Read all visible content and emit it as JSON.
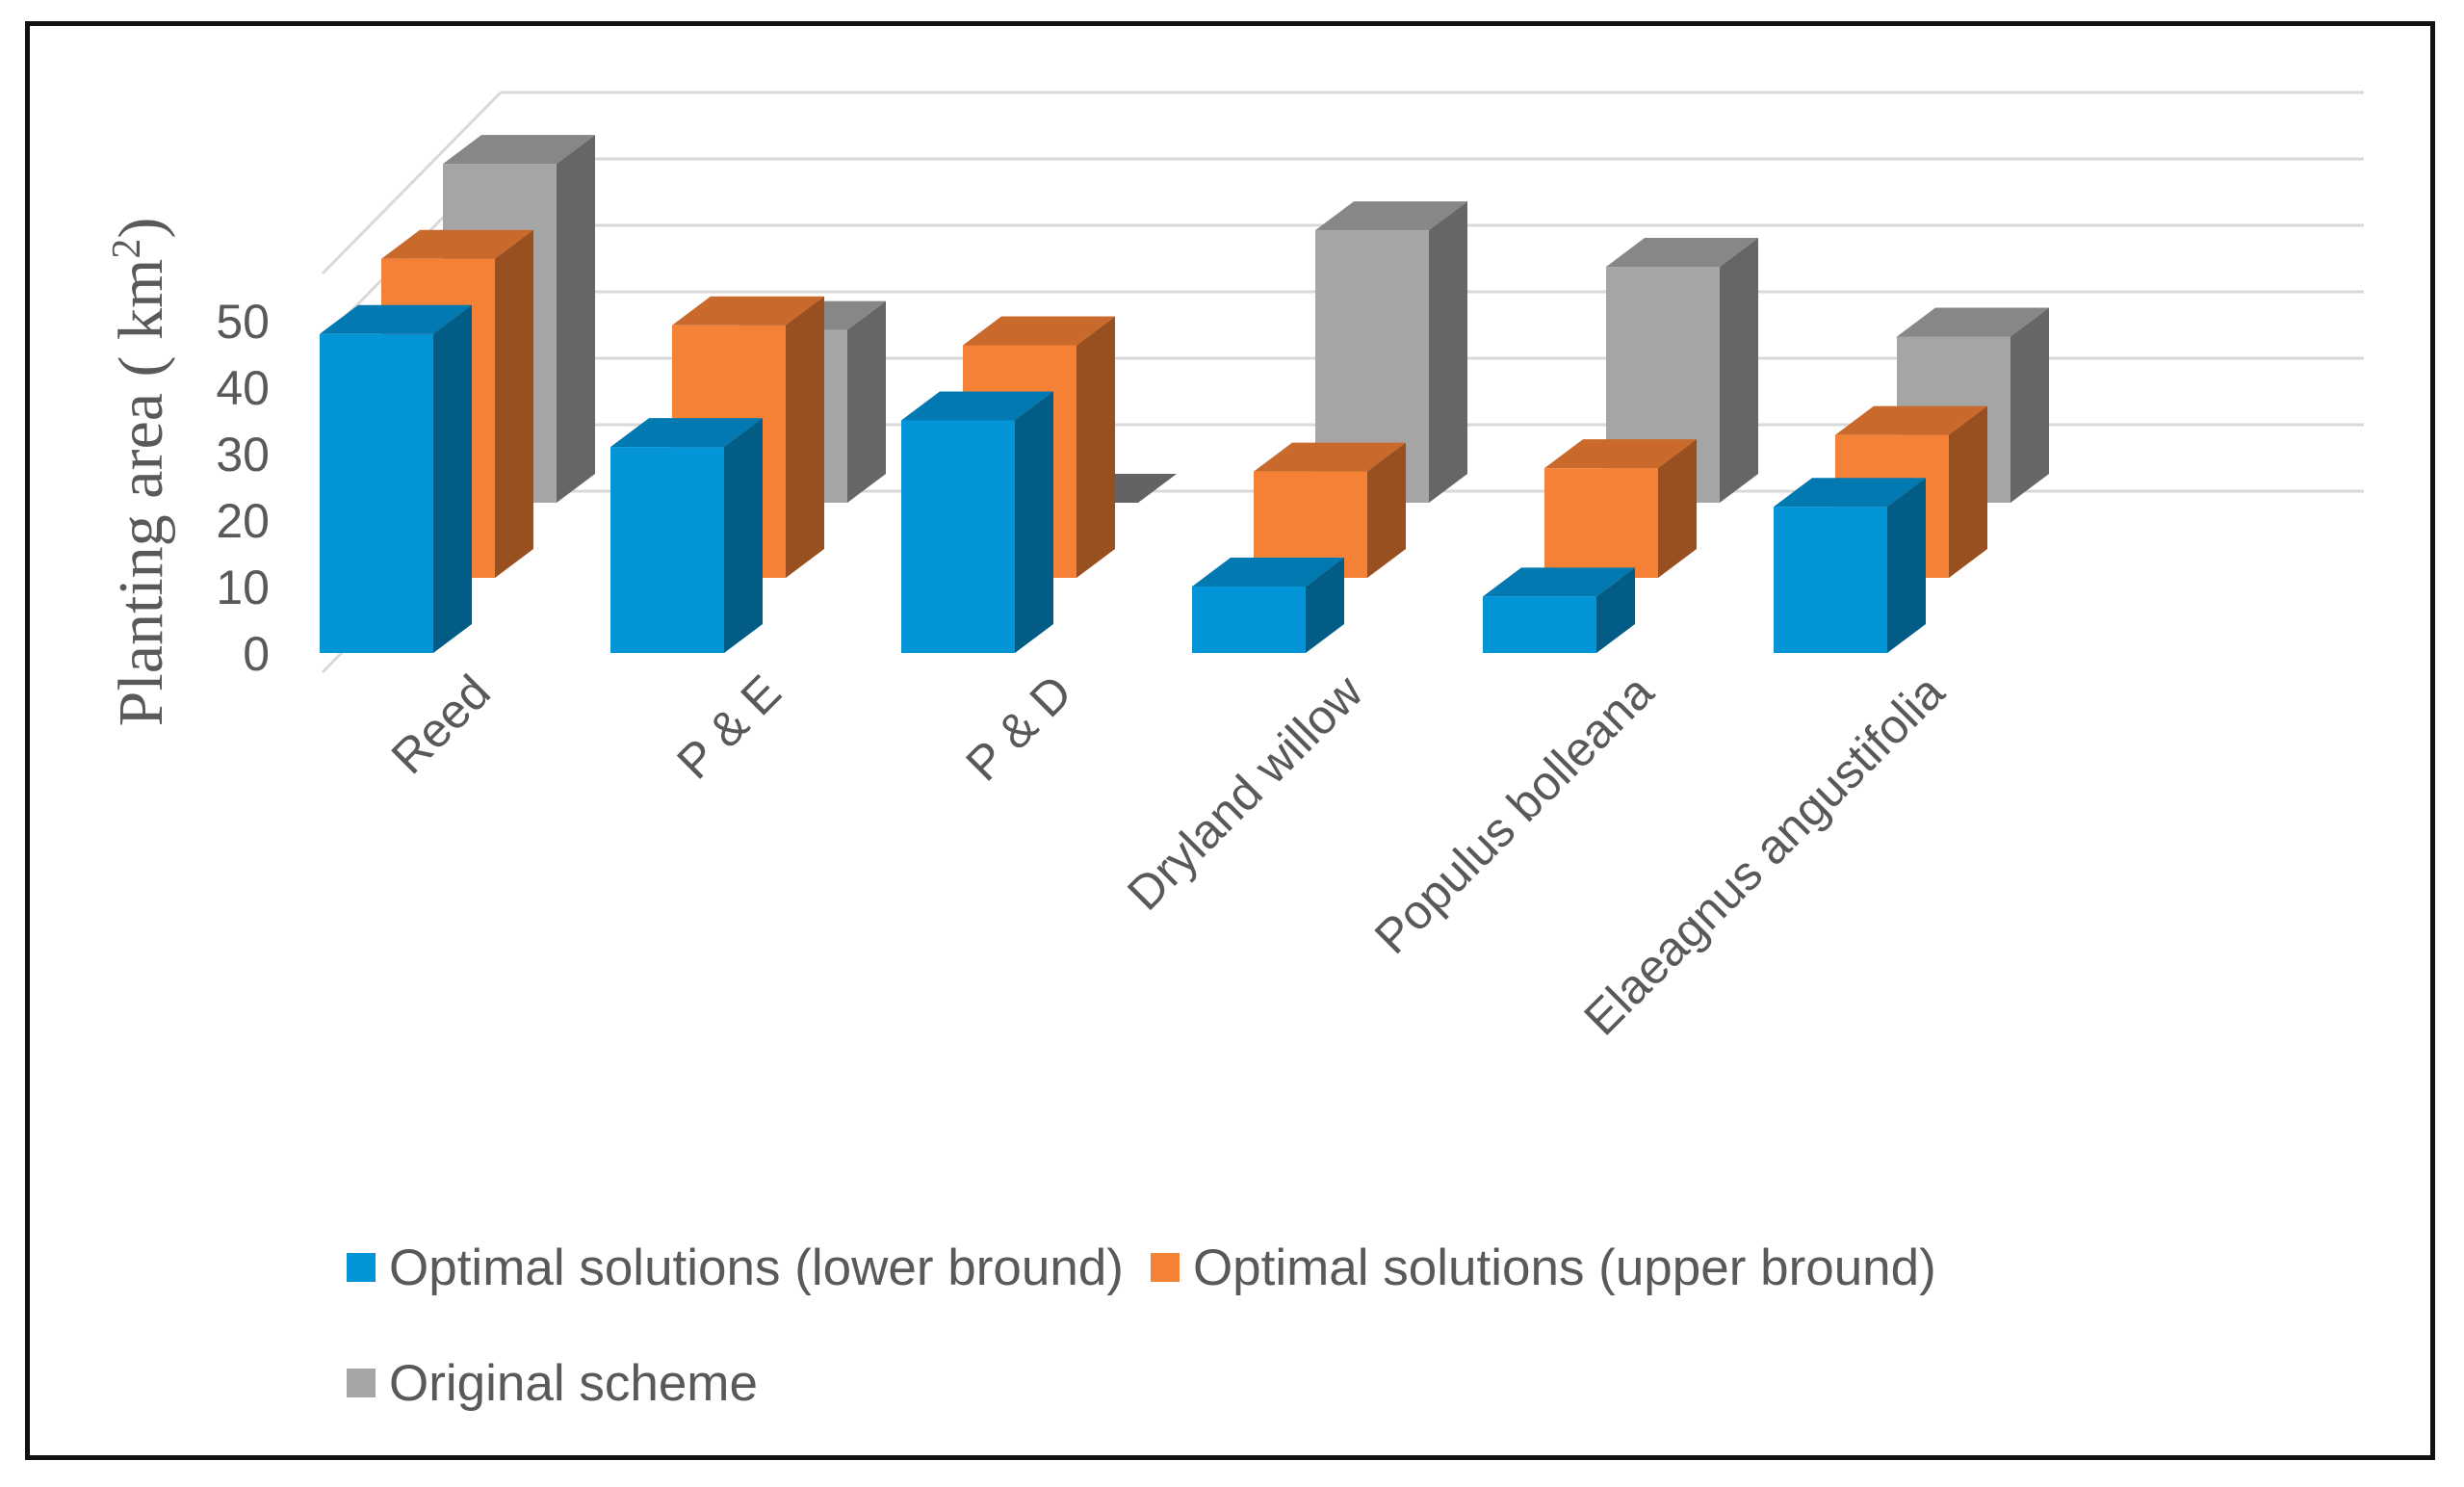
{
  "chart_data": {
    "type": "bar",
    "style": "3d-clustered-columns",
    "title": "",
    "xlabel": "",
    "ylabel": "Planting area ( km²)",
    "ylabel_parts": {
      "main": "Planting area ( km",
      "sup": "2",
      "end": ")"
    },
    "ylim": [
      0,
      50
    ],
    "yticks": [
      "0",
      "10",
      "20",
      "30",
      "40",
      "50"
    ],
    "grid": true,
    "legend_position": "bottom",
    "categories": [
      "Reed",
      "P & E",
      "P & D",
      "Dryland willow",
      "Populus bolleana",
      "Elaeagnus angustifolia"
    ],
    "series": [
      {
        "name": "Optimal solutions (lower bround)",
        "color": "#0494D8",
        "values": [
          48,
          31,
          35,
          10,
          8.5,
          22
        ]
      },
      {
        "name": "Optimal solutions (upper bround)",
        "color": "#F58136",
        "values": [
          48,
          38,
          35,
          16,
          16.5,
          21.5
        ]
      },
      {
        "name": "Original  scheme",
        "color": "#A5A5A5",
        "values": [
          51,
          26,
          0,
          41,
          35.5,
          25
        ]
      }
    ]
  }
}
